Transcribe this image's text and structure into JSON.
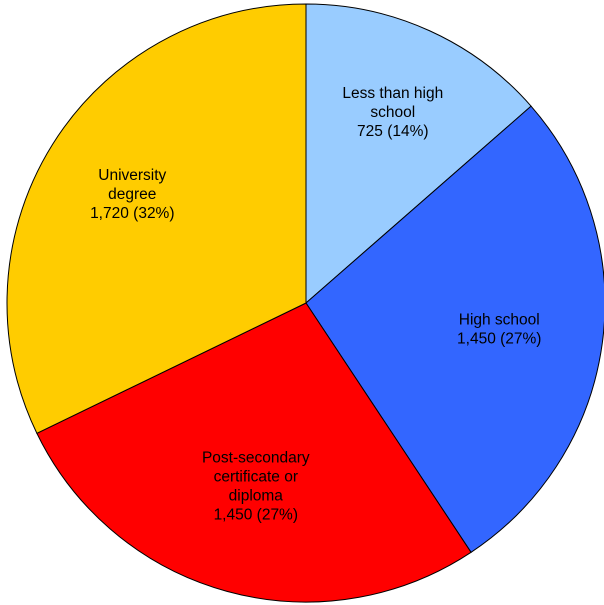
{
  "chart_data": {
    "type": "pie",
    "slices": [
      {
        "label": [
          "Less than high",
          "school"
        ],
        "value_label": "725 (14%)",
        "value": 725,
        "percent": 14,
        "color": "#99ccff"
      },
      {
        "label": [
          "High school"
        ],
        "value_label": "1,450 (27%)",
        "value": 1450,
        "percent": 27,
        "color": "#3366ff"
      },
      {
        "label": [
          "Post-secondary",
          "certificate or",
          "diploma"
        ],
        "value_label": "1,450 (27%)",
        "value": 1450,
        "percent": 27,
        "color": "#ff0000"
      },
      {
        "label": [
          "University",
          "degree"
        ],
        "value_label": "1,720 (32%)",
        "value": 1720,
        "percent": 32,
        "color": "#ffcc00"
      }
    ],
    "start_angle": "12 o'clock",
    "direction": "clockwise",
    "legend": "none"
  }
}
